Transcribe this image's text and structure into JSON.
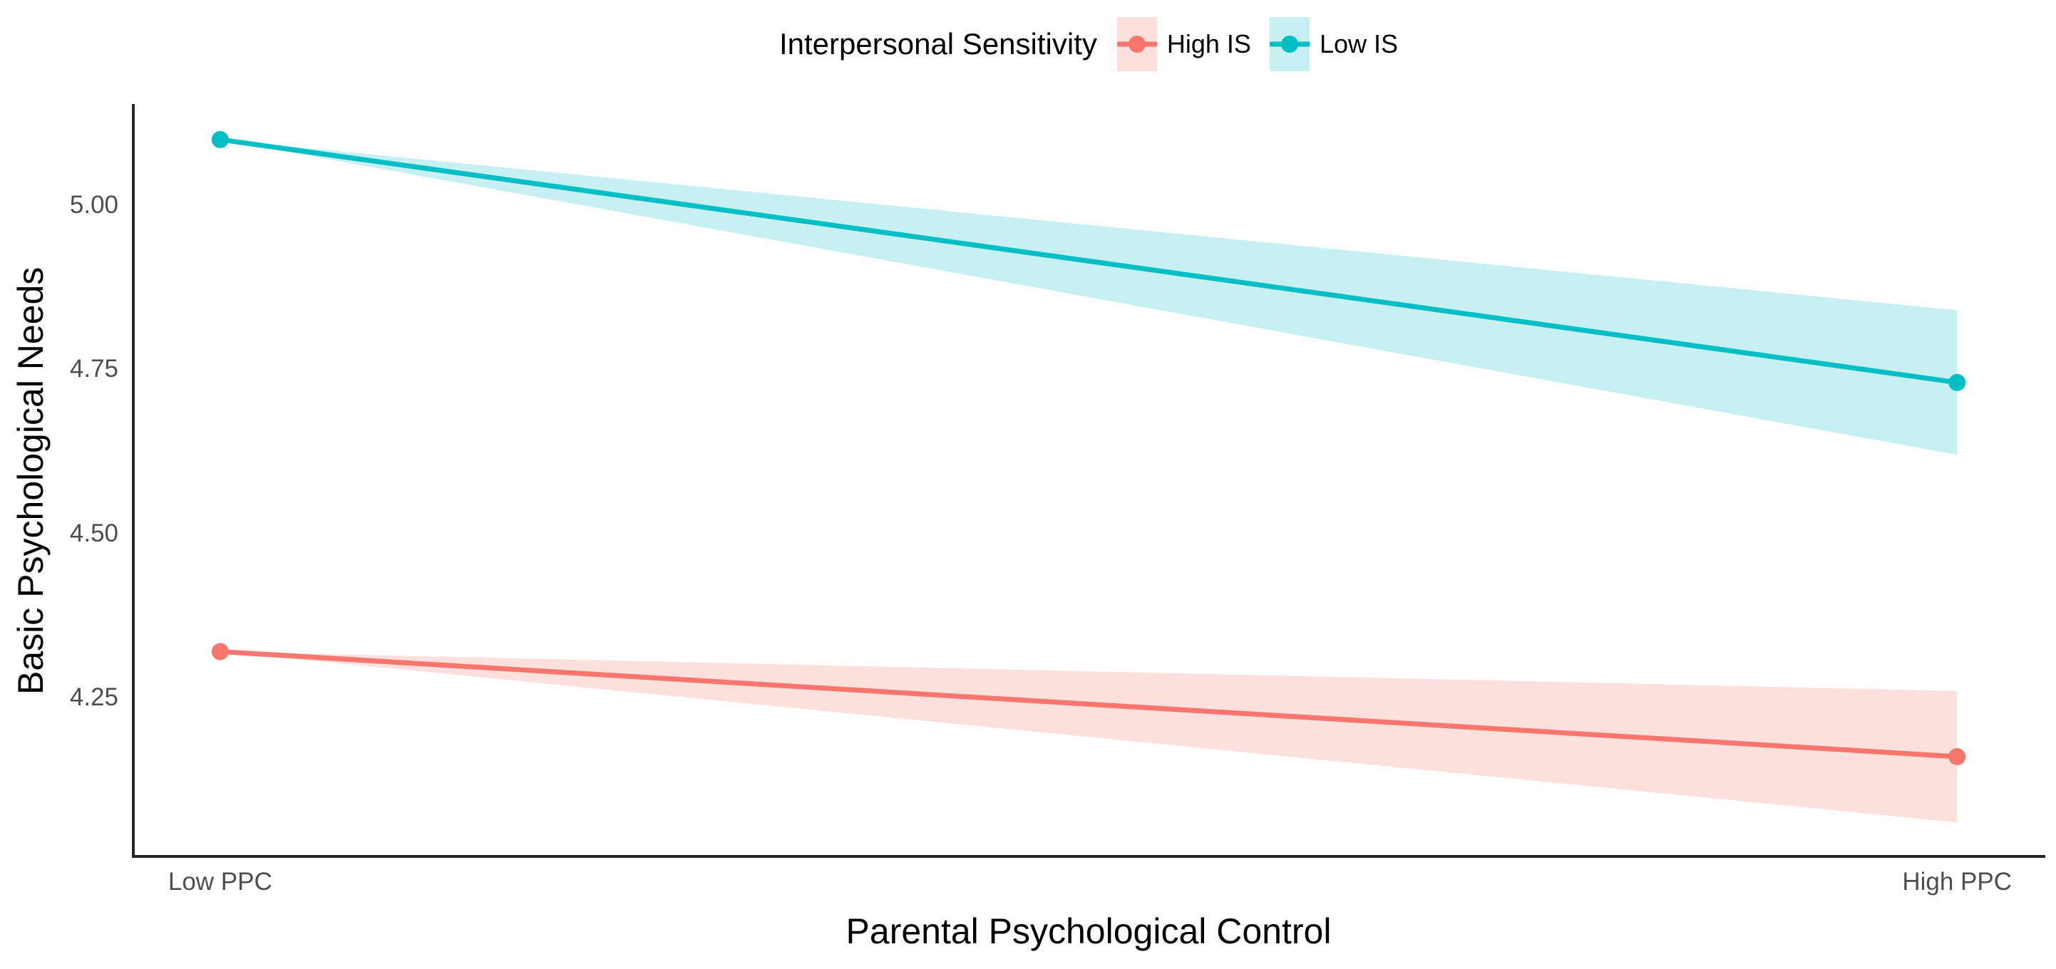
{
  "chart_data": {
    "type": "line",
    "title": "",
    "legend_title": "Interpersonal Sensitivity",
    "legend_position": "top",
    "xlabel": "Parental Psychological Control",
    "ylabel": "Basic Psychological Needs",
    "x_tick_labels": [
      "Low PPC",
      "High PPC"
    ],
    "x": [
      0,
      1
    ],
    "xlim": [
      -0.05,
      1.05
    ],
    "y_ticks": [
      4.25,
      4.5,
      4.75,
      5.0
    ],
    "y_tick_labels": [
      "4.25",
      "4.50",
      "4.75",
      "5.00"
    ],
    "ylim": [
      4.008,
      5.152
    ],
    "grid": false,
    "axis_line_color": "#262626",
    "tick_label_color": "#4d4d4d",
    "series": [
      {
        "name": "High IS",
        "color": "#F8766D",
        "ribbon_fill": "#FCE0DD",
        "values": [
          4.32,
          4.16
        ],
        "ci_lower": [
          4.32,
          4.06
        ],
        "ci_upper": [
          4.32,
          4.26
        ]
      },
      {
        "name": "Low IS",
        "color": "#00BFC4",
        "ribbon_fill": "#C6F0F2",
        "values": [
          5.1,
          4.73
        ],
        "ci_lower": [
          5.1,
          4.62
        ],
        "ci_upper": [
          5.1,
          4.84
        ]
      }
    ]
  }
}
